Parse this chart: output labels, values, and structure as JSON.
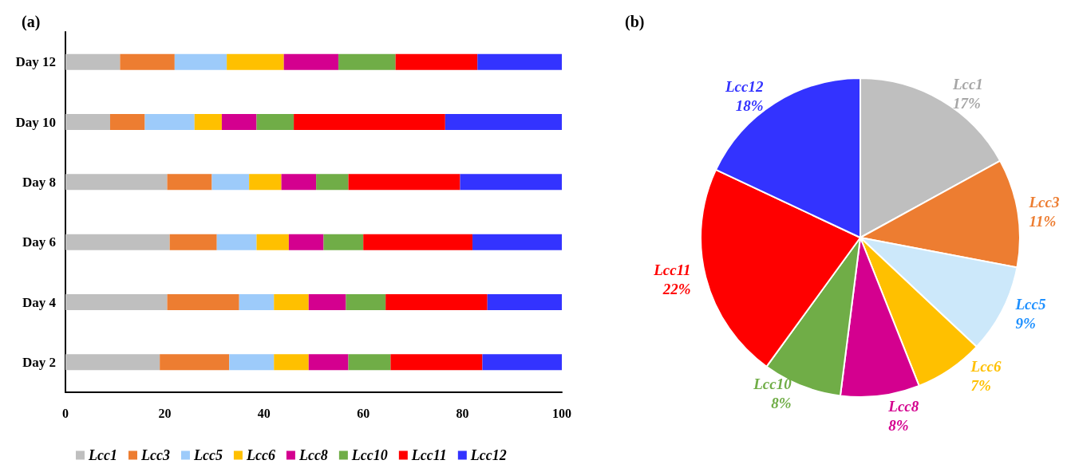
{
  "chart_data": [
    {
      "type": "bar",
      "title": "(a)",
      "orientation": "horizontal",
      "stacked": true,
      "categories": [
        "Day 12",
        "Day 10",
        "Day 8",
        "Day 6",
        "Day 4",
        "Day 2"
      ],
      "xlim": [
        0,
        100
      ],
      "xticks": [
        0,
        20,
        40,
        60,
        80,
        100
      ],
      "grid": false,
      "legend": "bottom",
      "series": [
        {
          "name": "Lcc1",
          "color": "#bfbfbf",
          "values": [
            11,
            9,
            20.5,
            21,
            20.5,
            19
          ]
        },
        {
          "name": "Lcc3",
          "color": "#ed7d31",
          "values": [
            11,
            7,
            9,
            9.5,
            14.5,
            14
          ]
        },
        {
          "name": "Lcc5",
          "color": "#9dcbfa",
          "values": [
            10.5,
            10,
            7.5,
            8,
            7,
            9
          ]
        },
        {
          "name": "Lcc6",
          "color": "#ffc000",
          "values": [
            11.5,
            5.5,
            6.5,
            6.5,
            7,
            7
          ]
        },
        {
          "name": "Lcc8",
          "color": "#d4008f",
          "values": [
            11,
            7,
            7,
            7,
            7.5,
            8
          ]
        },
        {
          "name": "Lcc10",
          "color": "#70ad47",
          "values": [
            11.5,
            7.5,
            6.5,
            8,
            8,
            8.5
          ]
        },
        {
          "name": "Lcc11",
          "color": "#ff0000",
          "values": [
            16.5,
            30.5,
            22.5,
            22,
            20.5,
            18.5
          ]
        },
        {
          "name": "Lcc12",
          "color": "#3333ff",
          "values": [
            17,
            23.5,
            20.5,
            18,
            15,
            16
          ]
        }
      ]
    },
    {
      "type": "pie",
      "title": "(b)",
      "categories": [
        "Lcc1",
        "Lcc3",
        "Lcc5",
        "Lcc6",
        "Lcc8",
        "Lcc10",
        "Lcc11",
        "Lcc12"
      ],
      "values": [
        17,
        11,
        9,
        7,
        8,
        8,
        22,
        18
      ],
      "colors": [
        "#bfbfbf",
        "#ed7d31",
        "#cce8fa",
        "#ffc000",
        "#d4008f",
        "#70ad47",
        "#ff0000",
        "#3333ff"
      ],
      "value_labels": [
        "17%",
        "11%",
        "9%",
        "7%",
        "8%",
        "8%",
        "22%",
        "18%"
      ]
    }
  ]
}
